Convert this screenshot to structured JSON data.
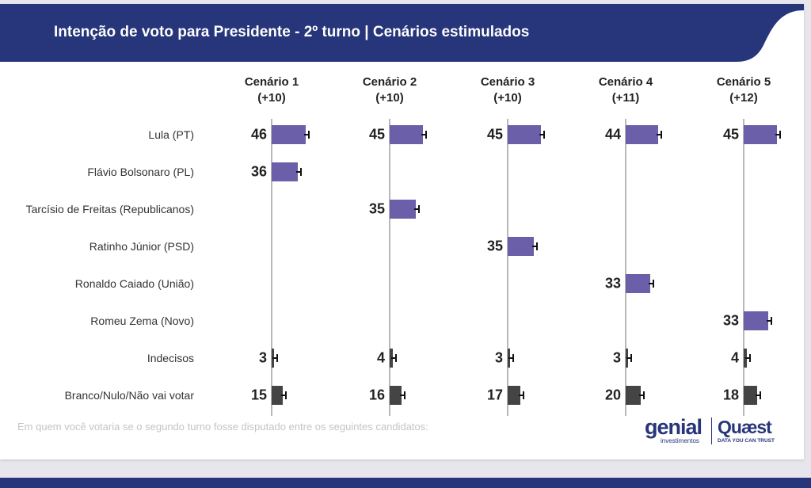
{
  "chart_data": {
    "type": "bar",
    "title": "Intenção de voto para Presidente - 2º turno | Cenários estimulados",
    "subtitle": "Em quem você votaria se o segundo turno fosse disputado entre os seguintes candidatos:",
    "categories": [
      "Lula (PT)",
      "Flávio Bolsonaro (PL)",
      "Tarcísio de Freitas (Republicanos)",
      "Ratinho Júnior (PSD)",
      "Ronaldo Caiado (União)",
      "Romeu Zema (Novo)",
      "Indecisos",
      "Branco/Nulo/Não vai votar"
    ],
    "series": [
      {
        "name": "Cenário 1",
        "margin": "(+10)",
        "values": [
          46,
          36,
          null,
          null,
          null,
          null,
          3,
          15
        ]
      },
      {
        "name": "Cenário 2",
        "margin": "(+10)",
        "values": [
          45,
          null,
          35,
          null,
          null,
          null,
          4,
          16
        ]
      },
      {
        "name": "Cenário 3",
        "margin": "(+10)",
        "values": [
          45,
          null,
          null,
          35,
          null,
          null,
          3,
          17
        ]
      },
      {
        "name": "Cenário 4",
        "margin": "(+11)",
        "values": [
          44,
          null,
          null,
          null,
          33,
          null,
          3,
          20
        ]
      },
      {
        "name": "Cenário 5",
        "margin": "(+12)",
        "values": [
          45,
          null,
          null,
          null,
          null,
          33,
          4,
          18
        ]
      }
    ],
    "colors": {
      "candidate": "#6a5fa8",
      "other": "#444444",
      "header": "#27357a"
    },
    "xlim": [
      0,
      100
    ]
  },
  "logos": {
    "genial": "genial",
    "genial_sub": "investimentos",
    "quaest": "Quæst",
    "quaest_sub": "DATA YOU CAN TRUST"
  }
}
